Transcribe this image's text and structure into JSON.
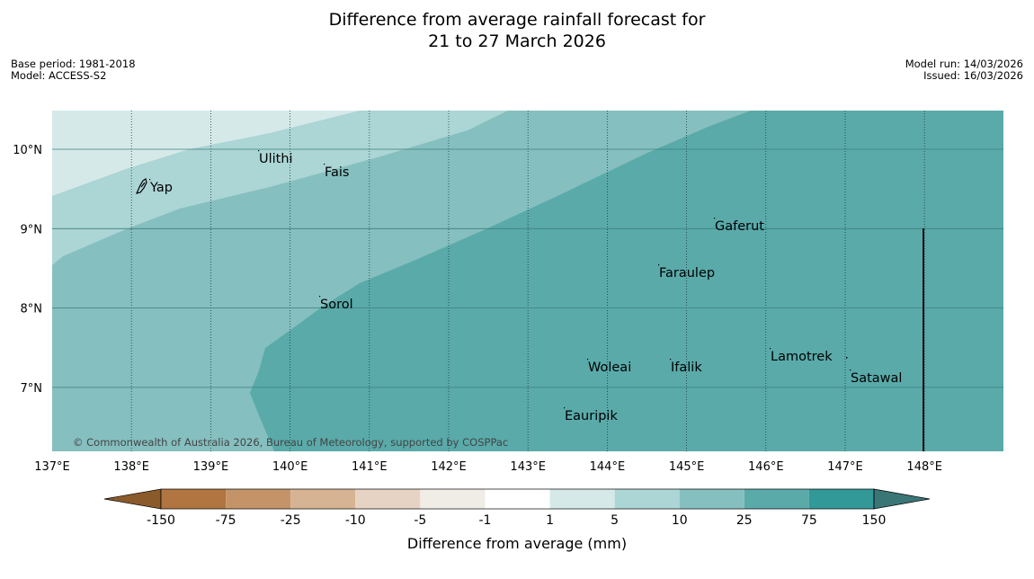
{
  "title": {
    "line1": "Difference from average rainfall forecast for",
    "line2": "21 to 27 March 2026"
  },
  "meta_left": {
    "base_period": "Base period: 1981-2018",
    "model": "Model: ACCESS-S2"
  },
  "meta_right": {
    "model_run": "Model run: 14/03/2026",
    "issued": "Issued: 16/03/2026"
  },
  "map": {
    "lon_labels": [
      "137°E",
      "138°E",
      "139°E",
      "140°E",
      "141°E",
      "142°E",
      "143°E",
      "144°E",
      "145°E",
      "146°E",
      "147°E",
      "148°E"
    ],
    "lat_labels": [
      "10°N",
      "9°N",
      "8°N",
      "7°N"
    ],
    "copyright": "© Commonwealth of Australia 2026, Bureau of Meteorology, supported by COSPPac",
    "places": [
      {
        "name": "Yap"
      },
      {
        "name": "Ulithi"
      },
      {
        "name": "Fais"
      },
      {
        "name": "Gaferut"
      },
      {
        "name": "Faraulep"
      },
      {
        "name": "Sorol"
      },
      {
        "name": "Lamotrek"
      },
      {
        "name": "Woleai"
      },
      {
        "name": "Ifalik"
      },
      {
        "name": "Satawal"
      },
      {
        "name": "Eauripik"
      }
    ]
  },
  "colorbar": {
    "label": "Difference from average (mm)",
    "ticks": [
      "-150",
      "-75",
      "-25",
      "-10",
      "-5",
      "-1",
      "1",
      "5",
      "10",
      "25",
      "75",
      "150"
    ],
    "colors": {
      "extend_low": "#8a5a2b",
      "c1": "#b07540",
      "c2": "#c49468",
      "c3": "#d6b393",
      "c4": "#e6d3c3",
      "c5": "#f0ece6",
      "c6": "#ffffff",
      "c7": "#d6e9e9",
      "c8": "#acd5d5",
      "c9": "#86bfbf",
      "c10": "#5aaaaa",
      "c11": "#339998",
      "extend_high": "#3a7676"
    }
  }
}
